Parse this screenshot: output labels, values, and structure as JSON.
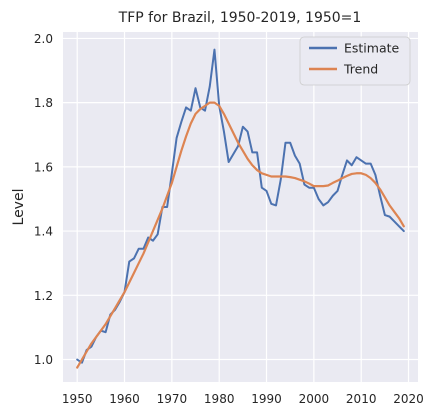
{
  "chart_data": {
    "type": "line",
    "title": "TFP for Brazil, 1950-2019, 1950=1",
    "xlabel": "",
    "ylabel": "Level",
    "xlim": [
      1947,
      2022
    ],
    "ylim": [
      0.93,
      2.02
    ],
    "xticks": [
      1950,
      1960,
      1970,
      1980,
      1990,
      2000,
      2010,
      2020
    ],
    "yticks": [
      1.0,
      1.2,
      1.4,
      1.6,
      1.8,
      2.0
    ],
    "ytick_labels": [
      "1.0",
      "1.2",
      "1.4",
      "1.6",
      "1.8",
      "2.0"
    ],
    "grid": true,
    "legend_position": "top-right",
    "background": "#eaeaf2",
    "x": [
      1950,
      1951,
      1952,
      1953,
      1954,
      1955,
      1956,
      1957,
      1958,
      1959,
      1960,
      1961,
      1962,
      1963,
      1964,
      1965,
      1966,
      1967,
      1968,
      1969,
      1970,
      1971,
      1972,
      1973,
      1974,
      1975,
      1976,
      1977,
      1978,
      1979,
      1980,
      1981,
      1982,
      1983,
      1984,
      1985,
      1986,
      1987,
      1988,
      1989,
      1990,
      1991,
      1992,
      1993,
      1994,
      1995,
      1996,
      1997,
      1998,
      1999,
      2000,
      2001,
      2002,
      2003,
      2004,
      2005,
      2006,
      2007,
      2008,
      2009,
      2010,
      2011,
      2012,
      2013,
      2014,
      2015,
      2016,
      2017,
      2018,
      2019
    ],
    "series": [
      {
        "name": "Estimate",
        "color": "#4c72b0",
        "values": [
          1.0,
          0.99,
          1.03,
          1.04,
          1.07,
          1.09,
          1.085,
          1.14,
          1.155,
          1.18,
          1.21,
          1.305,
          1.315,
          1.345,
          1.345,
          1.38,
          1.37,
          1.39,
          1.475,
          1.475,
          1.58,
          1.69,
          1.74,
          1.785,
          1.775,
          1.845,
          1.785,
          1.775,
          1.85,
          1.965,
          1.79,
          1.71,
          1.615,
          1.64,
          1.665,
          1.725,
          1.71,
          1.645,
          1.645,
          1.535,
          1.525,
          1.485,
          1.48,
          1.56,
          1.675,
          1.675,
          1.635,
          1.61,
          1.545,
          1.535,
          1.535,
          1.5,
          1.48,
          1.49,
          1.51,
          1.525,
          1.575,
          1.62,
          1.605,
          1.63,
          1.62,
          1.61,
          1.61,
          1.575,
          1.51,
          1.45,
          1.445,
          1.43,
          1.415,
          1.4
        ]
      },
      {
        "name": "Trend",
        "color": "#dd8452",
        "values": [
          0.975,
          1.0,
          1.025,
          1.05,
          1.07,
          1.09,
          1.11,
          1.135,
          1.16,
          1.185,
          1.21,
          1.24,
          1.27,
          1.3,
          1.33,
          1.365,
          1.4,
          1.435,
          1.47,
          1.51,
          1.55,
          1.6,
          1.65,
          1.695,
          1.735,
          1.765,
          1.78,
          1.79,
          1.8,
          1.8,
          1.79,
          1.765,
          1.735,
          1.705,
          1.675,
          1.65,
          1.625,
          1.605,
          1.59,
          1.58,
          1.575,
          1.57,
          1.57,
          1.57,
          1.57,
          1.568,
          1.565,
          1.56,
          1.555,
          1.548,
          1.54,
          1.54,
          1.54,
          1.542,
          1.55,
          1.557,
          1.565,
          1.572,
          1.578,
          1.58,
          1.58,
          1.575,
          1.565,
          1.55,
          1.53,
          1.505,
          1.48,
          1.46,
          1.44,
          1.415
        ]
      }
    ]
  }
}
